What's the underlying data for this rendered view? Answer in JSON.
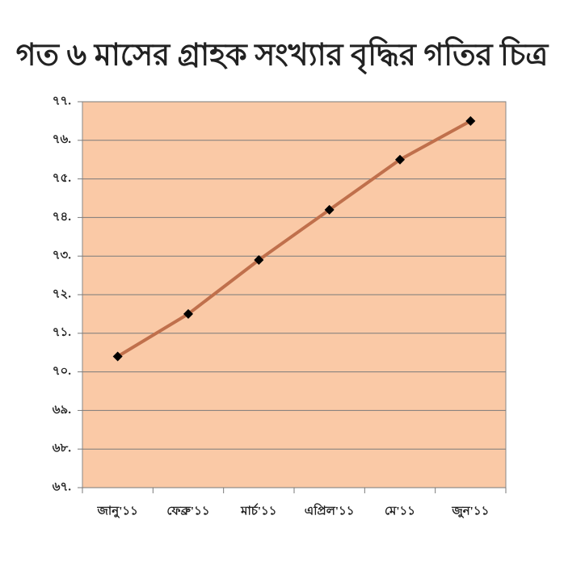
{
  "chart_data": {
    "type": "line",
    "title": "গত ৬ মাসের গ্রাহক সংখ্যার বৃদ্ধির গতির চিত্র",
    "categories": [
      "জানু'১১",
      "ফেব্রু'১১",
      "মার্চ'১১",
      "এপ্রিল'১১",
      "মে'১১",
      "জুন'১১"
    ],
    "series": [
      {
        "color": "#c0704c",
        "values": [
          70.4,
          71.5,
          72.9,
          74.2,
          75.5,
          76.5
        ]
      }
    ],
    "ylim": [
      67,
      77
    ],
    "yticks": [
      {
        "value": 67,
        "label": "৬৭."
      },
      {
        "value": 68,
        "label": "৬৮."
      },
      {
        "value": 69,
        "label": "৬৯."
      },
      {
        "value": 70,
        "label": "৭০."
      },
      {
        "value": 71,
        "label": "৭১."
      },
      {
        "value": 72,
        "label": "৭২."
      },
      {
        "value": 73,
        "label": "৭৩."
      },
      {
        "value": 74,
        "label": "৭৪."
      },
      {
        "value": 75,
        "label": "৭৫."
      },
      {
        "value": 76,
        "label": "৭৬."
      },
      {
        "value": 77,
        "label": "৭৭."
      }
    ],
    "grid": true,
    "background": "#fac9a6"
  }
}
